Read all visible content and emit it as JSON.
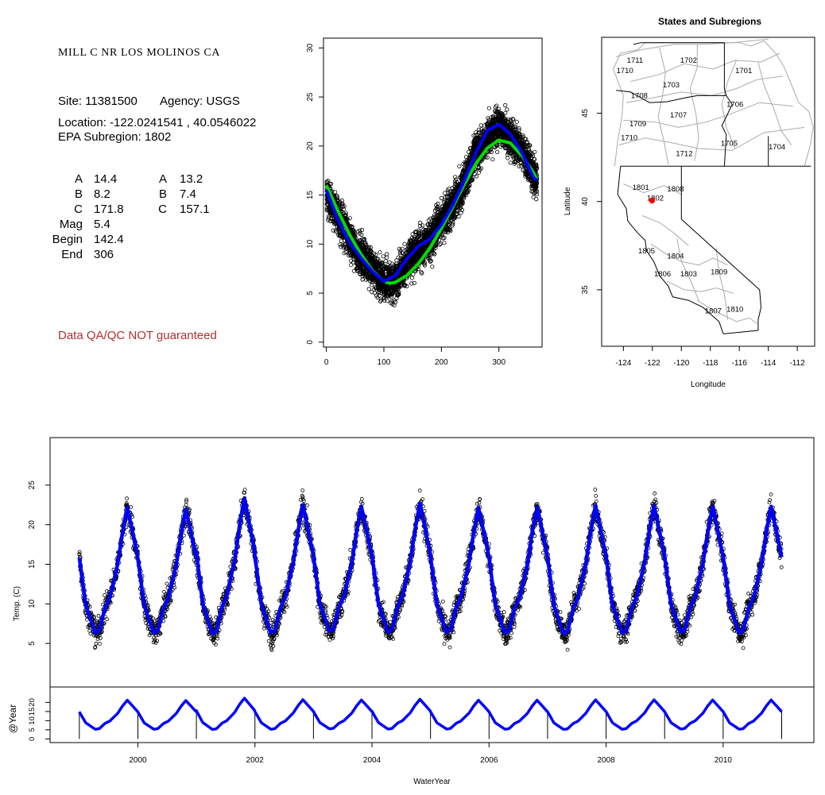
{
  "info": {
    "site_title": "MILL C NR LOS MOLINOS CA",
    "site_line": "Site: 11381500",
    "agency_line": "Agency: USGS",
    "location_line": "Location: -122.0241541 , 40.0546022",
    "subregion_line": "EPA Subregion: 1802",
    "params_left": [
      {
        "label": "A",
        "value": "14.4"
      },
      {
        "label": "B",
        "value": "8.2"
      },
      {
        "label": "C",
        "value": "171.8"
      },
      {
        "label": "Mag",
        "value": "5.4"
      },
      {
        "label": "Begin",
        "value": "142.4"
      },
      {
        "label": "End",
        "value": "306"
      }
    ],
    "params_right": [
      {
        "label": "A",
        "value": "13.2"
      },
      {
        "label": "B",
        "value": "7.4"
      },
      {
        "label": "C",
        "value": "157.1"
      }
    ],
    "qa_note": "Data QA/QC NOT guaranteed"
  },
  "chart_data": [
    {
      "type": "scatter",
      "panel": "seasonal",
      "title": "",
      "xlabel": "",
      "ylabel": "",
      "xlim": [
        -5,
        375
      ],
      "ylim": [
        -0.5,
        31
      ],
      "xticks": [
        0,
        100,
        200,
        300
      ],
      "yticks": [
        0,
        5,
        10,
        15,
        20,
        25,
        30
      ],
      "series": [
        {
          "kind": "points",
          "color": "#000000",
          "x_range": [
            1,
            366
          ],
          "y_center_fit": [
            [
              0,
              15
            ],
            [
              50,
              9.5
            ],
            [
              100,
              6.2
            ],
            [
              120,
              6.3
            ],
            [
              150,
              9
            ],
            [
              180,
              10.5
            ],
            [
              230,
              15
            ],
            [
              260,
              19.5
            ],
            [
              300,
              22.2
            ],
            [
              340,
              19.5
            ],
            [
              366,
              16.5
            ]
          ]
        },
        {
          "kind": "smooth",
          "color": "#0000ff",
          "x": [
            0,
            20,
            40,
            60,
            80,
            100,
            120,
            140,
            160,
            180,
            200,
            220,
            240,
            260,
            280,
            300,
            320,
            340,
            360,
            366
          ],
          "y": [
            15.5,
            12.5,
            10.2,
            8.6,
            7.2,
            6.2,
            6.8,
            8.5,
            9.8,
            10.5,
            12.0,
            14.0,
            16.5,
            19.3,
            21.6,
            22.2,
            21.2,
            19.3,
            16.8,
            16.5
          ]
        },
        {
          "kind": "smooth",
          "color": "#00dd00",
          "x": [
            0,
            20,
            40,
            60,
            80,
            100,
            110,
            120,
            140,
            160,
            180,
            200,
            220,
            240,
            260,
            280,
            300,
            320,
            340,
            360,
            366
          ],
          "y": [
            16.0,
            13.4,
            11.0,
            9.0,
            7.3,
            6.2,
            6.0,
            6.1,
            6.8,
            8.0,
            9.6,
            11.6,
            13.8,
            16.1,
            18.2,
            19.8,
            20.6,
            20.3,
            19.0,
            17.3,
            16.6
          ]
        }
      ]
    },
    {
      "type": "map",
      "panel": "map",
      "title": "States and Subregions",
      "xlabel": "Longitude",
      "ylabel": "Latitude",
      "xlim": [
        -125.5,
        -110.8
      ],
      "ylim": [
        31.8,
        49.3
      ],
      "xticks": [
        -124,
        -122,
        -120,
        -118,
        -116,
        -114,
        -112
      ],
      "yticks": [
        35,
        40,
        45
      ],
      "site": {
        "lon": -122.0241541,
        "lat": 40.0546022,
        "color": "#ff0000"
      },
      "region_labels": [
        {
          "text": "1711",
          "lon": -123.2,
          "lat": 48.0
        },
        {
          "text": "1710",
          "lon": -123.9,
          "lat": 47.4
        },
        {
          "text": "1702",
          "lon": -119.5,
          "lat": 48.0
        },
        {
          "text": "1701",
          "lon": -115.7,
          "lat": 47.4
        },
        {
          "text": "1703",
          "lon": -120.7,
          "lat": 46.6
        },
        {
          "text": "1708",
          "lon": -122.9,
          "lat": 46.0
        },
        {
          "text": "1706",
          "lon": -116.3,
          "lat": 45.5
        },
        {
          "text": "1707",
          "lon": -120.2,
          "lat": 44.9
        },
        {
          "text": "1709",
          "lon": -123.0,
          "lat": 44.4
        },
        {
          "text": "1710",
          "lon": -123.6,
          "lat": 43.6
        },
        {
          "text": "1705",
          "lon": -116.7,
          "lat": 43.3
        },
        {
          "text": "1704",
          "lon": -113.4,
          "lat": 43.1
        },
        {
          "text": "1712",
          "lon": -119.8,
          "lat": 42.7
        },
        {
          "text": "1801",
          "lon": -122.8,
          "lat": 40.8
        },
        {
          "text": "1808",
          "lon": -120.4,
          "lat": 40.7
        },
        {
          "text": "1802",
          "lon": -121.8,
          "lat": 40.2
        },
        {
          "text": "1805",
          "lon": -122.4,
          "lat": 37.2
        },
        {
          "text": "1804",
          "lon": -120.4,
          "lat": 36.9
        },
        {
          "text": "1806",
          "lon": -121.3,
          "lat": 35.9
        },
        {
          "text": "1803",
          "lon": -119.5,
          "lat": 35.9
        },
        {
          "text": "1809",
          "lon": -117.4,
          "lat": 36.0
        },
        {
          "text": "1807",
          "lon": -117.8,
          "lat": 33.8
        },
        {
          "text": "1810",
          "lon": -116.3,
          "lat": 33.9
        }
      ]
    },
    {
      "type": "scatter",
      "panel": "timeseries",
      "title": "",
      "xlabel": "",
      "ylabel": "Temp. (C)",
      "xlim": [
        1998.5,
        2011.55
      ],
      "ylim": [
        -0.5,
        31
      ],
      "xticks": [],
      "yticks": [
        5,
        10,
        15,
        20,
        25
      ],
      "start": 1999.0,
      "end": 2011.0,
      "annual_peaks": [
        22.2,
        22.0,
        23.3,
        22.5,
        22.3,
        22.7,
        22.2,
        22.2,
        22.4,
        22.4,
        22.3,
        22.3
      ],
      "annual_troughs": [
        6.3,
        6.3,
        6.2,
        6.3,
        6.5,
        6.4,
        6.4,
        6.3,
        6.2,
        6.3,
        6.4,
        6.3
      ],
      "series": [
        {
          "kind": "points",
          "color": "#000000"
        },
        {
          "kind": "smooth",
          "color": "#0000ff"
        }
      ]
    },
    {
      "type": "line",
      "panel": "at-year",
      "xlabel": "WaterYear",
      "ylabel": "@Year",
      "xlim": [
        1998.5,
        2011.55
      ],
      "ylim": [
        -2,
        28
      ],
      "xticks": [
        2000,
        2002,
        2004,
        2006,
        2008,
        2010
      ],
      "yticks": [
        0,
        5,
        10,
        15,
        20
      ],
      "year_markers": [
        1999,
        2000,
        2001,
        2002,
        2003,
        2004,
        2005,
        2006,
        2007,
        2008,
        2009,
        2010,
        2011
      ],
      "series": [
        {
          "kind": "smooth",
          "color": "#0000ff"
        }
      ]
    }
  ]
}
